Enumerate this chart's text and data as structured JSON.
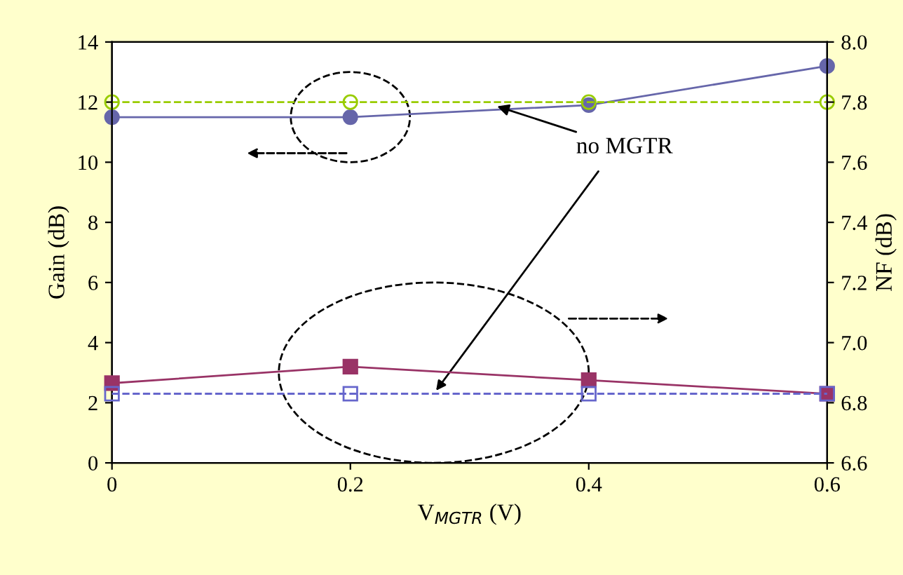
{
  "chart_data": {
    "type": "line",
    "xlabel": "V$_{MGTR}$ (V)",
    "ylabel": "Gain (dB)",
    "y2label": "NF (dB)",
    "x": [
      0,
      0.2,
      0.4,
      0.6
    ],
    "xlim": [
      0,
      0.6
    ],
    "xticks": [
      0,
      0.2,
      0.4,
      0.6
    ],
    "ylim": [
      0,
      14
    ],
    "yticks": [
      0,
      2,
      4,
      6,
      8,
      10,
      12,
      14
    ],
    "y2lim": [
      6.6,
      8.0
    ],
    "y2ticks": [
      6.6,
      6.8,
      {
        "value": 7.0,
        "label": "7.0"
      },
      7.2,
      7.4,
      7.6,
      7.8,
      {
        "value": 8.0,
        "label": "8.0"
      }
    ],
    "grid": false,
    "legend": false,
    "annotations": [
      {
        "text": "no MGTR",
        "x": 0.32,
        "y": 11.9
      }
    ],
    "series": [
      {
        "color": "#6666aa",
        "values": [
          11.5,
          11.5,
          11.9,
          13.2
        ],
        "marker": "circle",
        "line_style": "solid"
      },
      {
        "color": "#99cc00",
        "values": [
          12,
          12,
          12,
          12
        ],
        "marker": "circle",
        "line_style": "dashed"
      },
      {
        "color": "#993366",
        "values": [
          6.865,
          6.92,
          6.875,
          6.83
        ],
        "marker": "square",
        "line_style": "solid",
        "axis": "y2"
      },
      {
        "color": "#6666cc",
        "values": [
          6.83,
          6.83,
          6.83,
          6.83
        ],
        "marker": "square",
        "line_style": "dashed",
        "axis": "y2"
      }
    ]
  }
}
